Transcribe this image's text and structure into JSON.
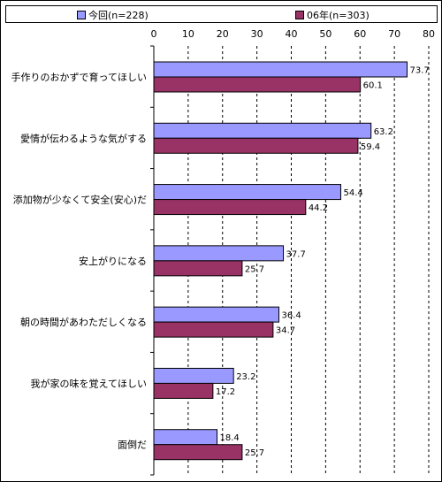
{
  "chart_data": {
    "type": "bar",
    "orientation": "horizontal",
    "categories": [
      "手作りのおかずで育ってほしい",
      "愛情が伝わるような気がする",
      "添加物が少なくて安全(安心)だ",
      "安上がりになる",
      "朝の時間があわただしくなる",
      "我が家の味を覚えてほしい",
      "面倒だ"
    ],
    "series": [
      {
        "name": "今回(n=228)",
        "color": "#9999ff",
        "values": [
          73.7,
          63.2,
          54.4,
          37.7,
          36.4,
          23.2,
          18.4
        ]
      },
      {
        "name": "06年(n=303)",
        "color": "#993366",
        "values": [
          60.1,
          59.4,
          44.2,
          25.7,
          34.7,
          17.2,
          25.7
        ]
      }
    ],
    "xlim": [
      0,
      80
    ],
    "xticks": [
      0,
      10,
      20,
      30,
      40,
      50,
      60,
      70,
      80
    ],
    "grid": true,
    "legend_position": "top"
  }
}
